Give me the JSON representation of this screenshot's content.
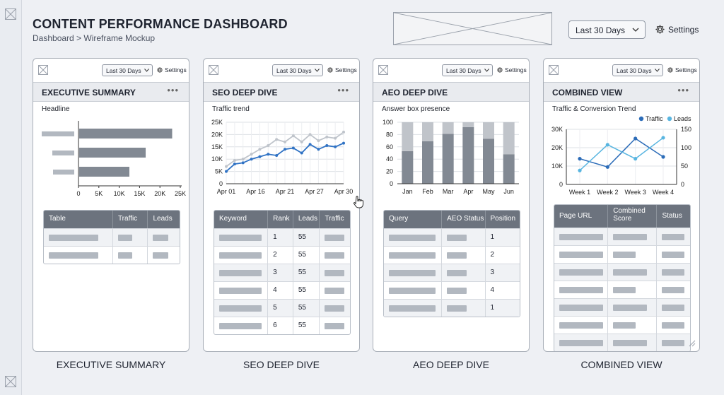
{
  "header": {
    "title": "CONTENT PERFORMANCE DASHBOARD",
    "breadcrumb": "Dashboard > Wireframe Mockup",
    "date_range": "Last 30 Days",
    "settings_label": "Settings"
  },
  "panel_controls": {
    "date_range": "Last 30 Days",
    "settings_label": "Settings",
    "more": "•••"
  },
  "panels": {
    "executive": {
      "title": "EXECUTIVE SUMMARY",
      "subtitle": "Headline",
      "caption": "EXECUTIVE SUMMARY",
      "table_headers": [
        "Table",
        "Traffic",
        "Leads"
      ]
    },
    "seo": {
      "title": "SEO DEEP DIVE",
      "subtitle": "Traffic trend",
      "caption": "SEO DEEP DIVE",
      "table_headers": [
        "Keyword",
        "Rank",
        "Leads",
        "Traffic"
      ],
      "rows": [
        {
          "rank": "1",
          "leads": "55"
        },
        {
          "rank": "2",
          "leads": "55"
        },
        {
          "rank": "3",
          "leads": "55"
        },
        {
          "rank": "4",
          "leads": "55"
        },
        {
          "rank": "5",
          "leads": "55"
        },
        {
          "rank": "6",
          "leads": "55"
        }
      ]
    },
    "aeo": {
      "title": "AEO DEEP DIVE",
      "subtitle": "Answer box presence",
      "caption": "AEO DEEP DIVE",
      "table_headers": [
        "Query",
        "AEO Status",
        "Position"
      ],
      "rows": [
        {
          "position": "1"
        },
        {
          "position": "2"
        },
        {
          "position": "3"
        },
        {
          "position": "4"
        },
        {
          "position": "1"
        }
      ]
    },
    "combined": {
      "title": "COMBINED VIEW",
      "subtitle": "Traffic & Conversion Trend",
      "caption": "COMBINED VIEW",
      "table_headers": [
        "Page URL",
        "Combined\nScore",
        "Status"
      ]
    }
  },
  "colors": {
    "seo_primary": "#2f72c4",
    "seo_secondary": "#bfc4cb",
    "combined_traffic": "#2c6cb8",
    "combined_leads": "#58b5e0",
    "bar_gray": "#828993",
    "bar_light": "#c0c4ca"
  },
  "chart_data": [
    {
      "type": "bar",
      "orientation": "horizontal",
      "title": "Headline",
      "categories": [
        "",
        "",
        ""
      ],
      "values": [
        23000,
        16500,
        12500
      ],
      "xticks": [
        "0",
        "5K",
        "10K",
        "15K",
        "20K",
        "25K"
      ],
      "xlim": [
        0,
        25000
      ]
    },
    {
      "type": "line",
      "title": "Traffic trend",
      "x": [
        0,
        1,
        2,
        3,
        4,
        5,
        6,
        7,
        8,
        9,
        10,
        11,
        12,
        13,
        14
      ],
      "xticks": [
        "Apr 01",
        "Apr 16",
        "Apr 21",
        "Apr 27",
        "Apr 30"
      ],
      "yticks": [
        "0",
        "5K",
        "10K",
        "15K",
        "20K",
        "25K"
      ],
      "ylim": [
        0,
        25000
      ],
      "series": [
        {
          "values": [
            7000,
            9500,
            10000,
            12000,
            14000,
            15500,
            18000,
            17000,
            19500,
            17000,
            20000,
            17500,
            19000,
            18500,
            21000
          ]
        },
        {
          "values": [
            5000,
            8000,
            8500,
            10000,
            11000,
            12000,
            11500,
            14000,
            14500,
            12500,
            16000,
            14000,
            15500,
            15000,
            16500
          ]
        }
      ]
    },
    {
      "type": "bar",
      "stacked": true,
      "title": "Answer box presence",
      "categories": [
        "Jan",
        "Feb",
        "Mar",
        "Apr",
        "May",
        "Jun"
      ],
      "yticks": [
        "0",
        "20",
        "40",
        "60",
        "80",
        "100"
      ],
      "ylim": [
        0,
        100
      ],
      "series": [
        {
          "values": [
            53,
            69,
            81,
            92,
            73,
            48
          ]
        },
        {
          "values": [
            47,
            31,
            19,
            8,
            27,
            52
          ]
        }
      ]
    },
    {
      "type": "line",
      "title": "Traffic & Conversion Trend",
      "categories": [
        "Week 1",
        "Week 2",
        "Week 3",
        "Week 4"
      ],
      "yticks_left": [
        "0",
        "10K",
        "20K",
        "30K"
      ],
      "ylim_left": [
        0,
        30000
      ],
      "yticks_right": [
        "0",
        "50",
        "100",
        "150"
      ],
      "ylim_right": [
        0,
        150
      ],
      "legend": "top-right",
      "series": [
        {
          "name": "Traffic",
          "axis": "left",
          "values": [
            14000,
            9500,
            25000,
            15000
          ]
        },
        {
          "name": "Leads",
          "axis": "right",
          "values": [
            38,
            108,
            70,
            127
          ]
        }
      ]
    }
  ]
}
